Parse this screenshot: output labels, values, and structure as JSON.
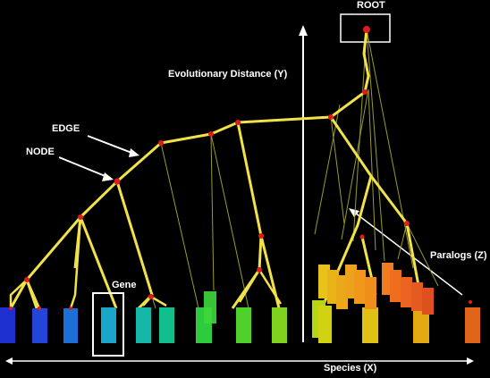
{
  "labels": {
    "root": "ROOT",
    "y_axis": "Evolutionary Distance (Y)",
    "edge": "EDGE",
    "node": "NODE",
    "gene": "Gene",
    "paralogs": "Paralogs (Z)",
    "x_axis": "Species (X)"
  },
  "colors": {
    "background": "#000000",
    "edge": "#f2e24a",
    "thin_edge": "#9c9a2c",
    "node": "#e11b1b",
    "axis": "#ffffff",
    "label": "#ffffff"
  }
}
